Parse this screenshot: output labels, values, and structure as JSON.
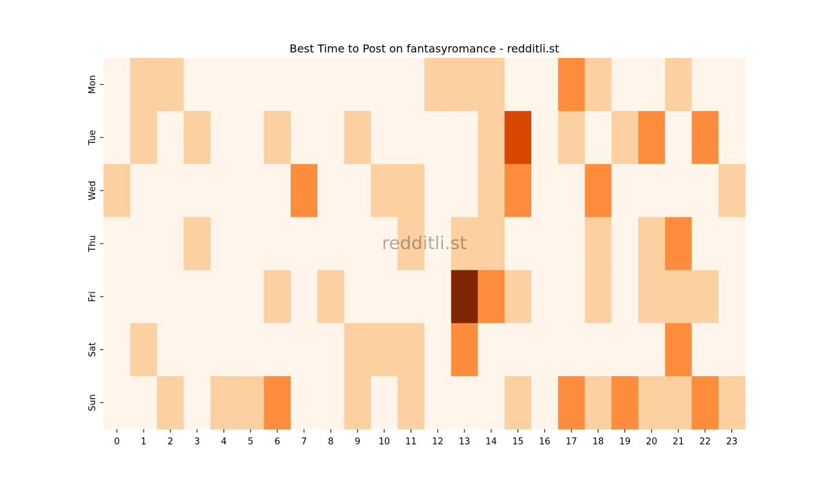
{
  "chart_data": {
    "type": "heatmap",
    "title": "Best Time to Post on fantasyromance - redditli.st",
    "watermark": "redditli.st",
    "x_labels": [
      "0",
      "1",
      "2",
      "3",
      "4",
      "5",
      "6",
      "7",
      "8",
      "9",
      "10",
      "11",
      "12",
      "13",
      "14",
      "15",
      "16",
      "17",
      "18",
      "19",
      "20",
      "21",
      "22",
      "23"
    ],
    "y_labels": [
      "Mon",
      "Tue",
      "Wed",
      "Thu",
      "Fri",
      "Sat",
      "Sun"
    ],
    "levels": [
      [
        0,
        1,
        1,
        0,
        0,
        0,
        0,
        0,
        0,
        0,
        0,
        0,
        1,
        1,
        1,
        0,
        0,
        2,
        1,
        0,
        0,
        1,
        0,
        0
      ],
      [
        0,
        1,
        0,
        1,
        0,
        0,
        1,
        0,
        0,
        1,
        0,
        0,
        0,
        0,
        1,
        3,
        0,
        1,
        0,
        1,
        2,
        0,
        2,
        0
      ],
      [
        1,
        0,
        0,
        0,
        0,
        0,
        0,
        2,
        0,
        0,
        1,
        1,
        0,
        0,
        1,
        2,
        0,
        0,
        2,
        0,
        0,
        0,
        0,
        1
      ],
      [
        0,
        0,
        0,
        1,
        0,
        0,
        0,
        0,
        0,
        0,
        0,
        1,
        0,
        1,
        1,
        0,
        0,
        0,
        1,
        0,
        1,
        2,
        0,
        0
      ],
      [
        0,
        0,
        0,
        0,
        0,
        0,
        1,
        0,
        1,
        0,
        0,
        0,
        0,
        4,
        2,
        1,
        0,
        0,
        1,
        0,
        1,
        1,
        1,
        0
      ],
      [
        0,
        1,
        0,
        0,
        0,
        0,
        0,
        0,
        0,
        1,
        1,
        1,
        0,
        2,
        0,
        0,
        0,
        0,
        0,
        0,
        0,
        2,
        0,
        0
      ],
      [
        0,
        0,
        1,
        0,
        1,
        1,
        2,
        0,
        0,
        1,
        0,
        1,
        0,
        0,
        0,
        1,
        0,
        2,
        1,
        2,
        1,
        1,
        2,
        1
      ]
    ],
    "colors": [
      "#fff5eb",
      "#fdd0a2",
      "#fd8d3c",
      "#d94801",
      "#7f2704"
    ],
    "xlabel": "",
    "ylabel": ""
  }
}
